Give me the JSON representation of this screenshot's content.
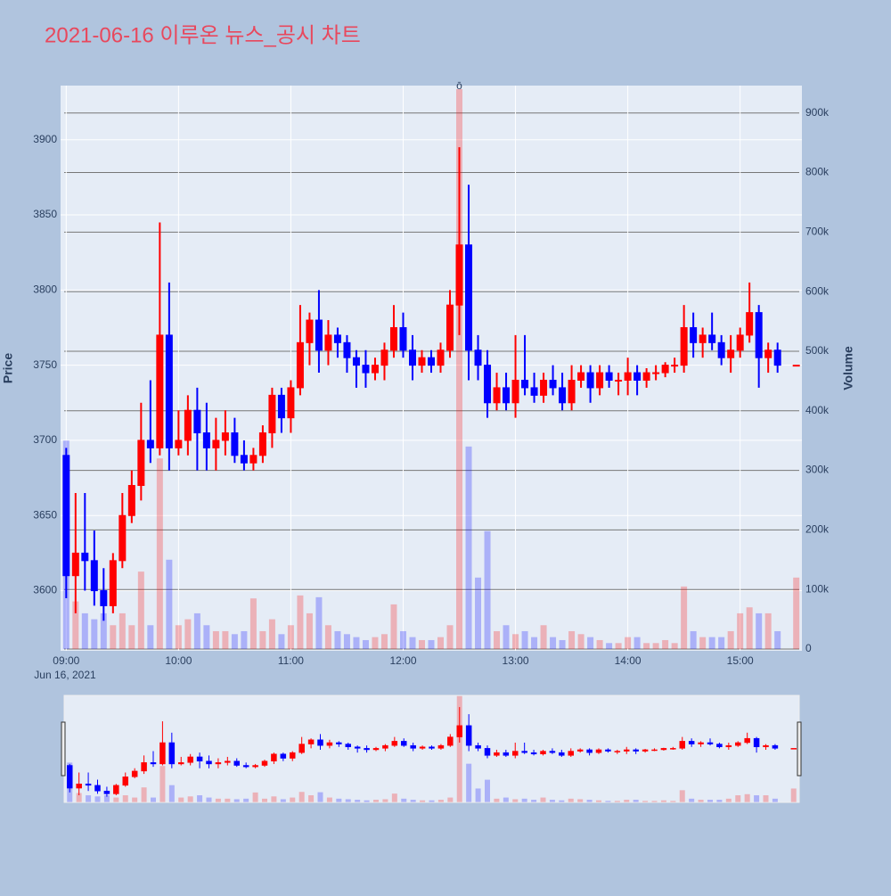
{
  "chart_data": {
    "type": "candlestick",
    "title": "2021-06-16 이루온 뉴스_공시 차트",
    "y_label": "Price",
    "y2_label": "Volume",
    "x_date_label": "Jun 16, 2021",
    "x": [
      "09:00",
      "09:05",
      "09:10",
      "09:15",
      "09:20",
      "09:25",
      "09:30",
      "09:35",
      "09:40",
      "09:45",
      "09:50",
      "09:55",
      "10:00",
      "10:05",
      "10:10",
      "10:15",
      "10:20",
      "10:25",
      "10:30",
      "10:35",
      "10:40",
      "10:45",
      "10:50",
      "10:55",
      "11:00",
      "11:05",
      "11:10",
      "11:15",
      "11:20",
      "11:25",
      "11:30",
      "11:35",
      "11:40",
      "11:45",
      "11:50",
      "11:55",
      "12:00",
      "12:05",
      "12:10",
      "12:15",
      "12:20",
      "12:25",
      "12:30",
      "12:35",
      "12:40",
      "12:45",
      "12:50",
      "12:55",
      "13:00",
      "13:05",
      "13:10",
      "13:15",
      "13:20",
      "13:25",
      "13:30",
      "13:35",
      "13:40",
      "13:45",
      "13:50",
      "13:55",
      "14:00",
      "14:05",
      "14:10",
      "14:15",
      "14:20",
      "14:25",
      "14:30",
      "14:35",
      "14:40",
      "14:45",
      "14:50",
      "14:55",
      "15:00",
      "15:05",
      "15:10",
      "15:15",
      "15:20",
      "15:30"
    ],
    "open": [
      3690,
      3610,
      3625,
      3620,
      3600,
      3590,
      3620,
      3650,
      3670,
      3700,
      3695,
      3770,
      3695,
      3700,
      3720,
      3705,
      3695,
      3700,
      3705,
      3690,
      3685,
      3690,
      3705,
      3730,
      3715,
      3735,
      3765,
      3780,
      3760,
      3770,
      3765,
      3755,
      3750,
      3745,
      3750,
      3760,
      3775,
      3760,
      3750,
      3755,
      3750,
      3760,
      3790,
      3830,
      3760,
      3750,
      3725,
      3735,
      3725,
      3740,
      3735,
      3730,
      3740,
      3735,
      3725,
      3740,
      3745,
      3735,
      3745,
      3740,
      3740,
      3745,
      3740,
      3745,
      3745,
      3750,
      3750,
      3775,
      3765,
      3770,
      3765,
      3755,
      3760,
      3770,
      3785,
      3755,
      3760,
      3750
    ],
    "high": [
      3695,
      3665,
      3665,
      3640,
      3615,
      3625,
      3665,
      3680,
      3725,
      3740,
      3845,
      3805,
      3720,
      3730,
      3735,
      3725,
      3715,
      3720,
      3715,
      3700,
      3695,
      3710,
      3735,
      3735,
      3740,
      3790,
      3785,
      3800,
      3780,
      3775,
      3770,
      3760,
      3760,
      3755,
      3765,
      3790,
      3785,
      3770,
      3760,
      3760,
      3765,
      3800,
      3895,
      3870,
      3770,
      3760,
      3745,
      3745,
      3770,
      3770,
      3745,
      3745,
      3750,
      3745,
      3750,
      3750,
      3750,
      3750,
      3750,
      3745,
      3755,
      3750,
      3748,
      3750,
      3752,
      3755,
      3790,
      3785,
      3775,
      3785,
      3770,
      3770,
      3775,
      3805,
      3790,
      3765,
      3765,
      3750
    ],
    "low": [
      3595,
      3585,
      3600,
      3590,
      3580,
      3585,
      3615,
      3645,
      3660,
      3685,
      3690,
      3680,
      3690,
      3690,
      3680,
      3680,
      3680,
      3690,
      3685,
      3680,
      3680,
      3685,
      3695,
      3705,
      3705,
      3730,
      3750,
      3745,
      3750,
      3755,
      3745,
      3735,
      3735,
      3740,
      3740,
      3755,
      3755,
      3740,
      3745,
      3745,
      3745,
      3755,
      3770,
      3740,
      3740,
      3715,
      3720,
      3720,
      3715,
      3730,
      3725,
      3725,
      3730,
      3720,
      3720,
      3735,
      3725,
      3730,
      3735,
      3730,
      3730,
      3730,
      3735,
      3740,
      3742,
      3745,
      3745,
      3755,
      3755,
      3760,
      3750,
      3745,
      3755,
      3765,
      3735,
      3745,
      3745,
      3750
    ],
    "close": [
      3610,
      3625,
      3620,
      3600,
      3590,
      3620,
      3650,
      3670,
      3700,
      3695,
      3770,
      3695,
      3700,
      3720,
      3705,
      3695,
      3700,
      3705,
      3690,
      3685,
      3690,
      3705,
      3730,
      3715,
      3735,
      3765,
      3780,
      3760,
      3770,
      3765,
      3755,
      3750,
      3745,
      3750,
      3760,
      3775,
      3760,
      3750,
      3755,
      3750,
      3760,
      3790,
      3830,
      3760,
      3750,
      3725,
      3735,
      3725,
      3740,
      3735,
      3730,
      3740,
      3735,
      3725,
      3740,
      3745,
      3735,
      3745,
      3740,
      3740,
      3745,
      3740,
      3745,
      3745,
      3750,
      3750,
      3775,
      3765,
      3770,
      3765,
      3755,
      3760,
      3770,
      3785,
      3755,
      3760,
      3750,
      3750
    ],
    "volume": [
      350000,
      80000,
      60000,
      50000,
      60000,
      40000,
      60000,
      40000,
      130000,
      40000,
      320000,
      150000,
      40000,
      50000,
      60000,
      40000,
      30000,
      30000,
      25000,
      30000,
      85000,
      30000,
      50000,
      25000,
      40000,
      90000,
      60000,
      87000,
      40000,
      30000,
      25000,
      20000,
      15000,
      20000,
      25000,
      75000,
      30000,
      20000,
      15000,
      15000,
      20000,
      40000,
      940000,
      340000,
      120000,
      198000,
      30000,
      40000,
      25000,
      30000,
      20000,
      40000,
      20000,
      15000,
      30000,
      25000,
      20000,
      15000,
      10000,
      10000,
      20000,
      20000,
      10000,
      10000,
      15000,
      10000,
      105000,
      30000,
      20000,
      20000,
      20000,
      30000,
      60000,
      70000,
      60000,
      60000,
      30000,
      120000
    ],
    "up_color": "#ff0000",
    "down_color": "#0000ff",
    "xlim": [
      "08:57",
      "15:33"
    ],
    "xticks": [
      "09:00",
      "10:00",
      "11:00",
      "12:00",
      "13:00",
      "14:00",
      "15:00"
    ],
    "ylim": [
      3560,
      3936
    ],
    "yticks": [
      3600,
      3650,
      3700,
      3750,
      3800,
      3850,
      3900
    ],
    "y2lim": [
      -3000,
      946000
    ],
    "y2ticks": [
      0,
      {
        "value": 100000,
        "label": "100k"
      },
      {
        "value": 200000,
        "label": "200k"
      },
      {
        "value": 300000,
        "label": "300k"
      },
      {
        "value": 400000,
        "label": "400k"
      },
      {
        "value": 500000,
        "label": "500k"
      },
      {
        "value": 600000,
        "label": "600k"
      },
      {
        "value": 700000,
        "label": "700k"
      },
      {
        "value": 800000,
        "label": "800k"
      },
      {
        "value": 900000,
        "label": "900k"
      }
    ],
    "annotations": [
      {
        "x": "12:30",
        "text": "ō"
      }
    ],
    "grid": true,
    "rangeslider": true
  }
}
